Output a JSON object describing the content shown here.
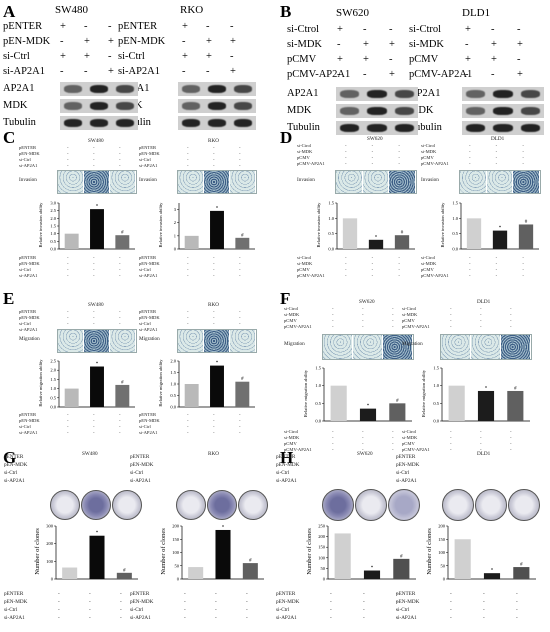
{
  "panels": {
    "A": {
      "letter": "A",
      "title1": "SW480",
      "title2": "RKO",
      "rows": [
        "pENTER",
        "pEN-MDK",
        "si-Ctrl",
        "si-AP2A1"
      ],
      "signs": [
        [
          "+",
          "-",
          "-"
        ],
        [
          "-",
          "+",
          "+"
        ],
        [
          "+",
          "+",
          "-"
        ],
        [
          "-",
          "-",
          "+"
        ]
      ],
      "blots": [
        "AP2A1",
        "MDK",
        "Tubulin"
      ]
    },
    "B": {
      "letter": "B",
      "title1": "SW620",
      "title2": "DLD1",
      "rows": [
        "si-Ctrol",
        "si-MDK",
        "pCMV",
        "pCMV-AP2A1"
      ],
      "signs": [
        [
          "+",
          "-",
          "-"
        ],
        [
          "-",
          "+",
          "+"
        ],
        [
          "+",
          "+",
          "-"
        ],
        [
          "-",
          "-",
          "+"
        ]
      ],
      "blots": [
        "AP2A1",
        "MDK",
        "Tubulin"
      ]
    },
    "C": {
      "letter": "C",
      "title1": "SW480",
      "title2": "RKO",
      "strip_label": "Invasion",
      "ylabel": "Relative invasion ability",
      "rows": [
        "pENTER",
        "pEN-MDK",
        "si-Ctrl",
        "si-AP2A1"
      ]
    },
    "D": {
      "letter": "D",
      "title1": "SW620",
      "title2": "DLD1",
      "strip_label": "Invasion",
      "ylabel": "Relative invasion ability",
      "rows": [
        "si-Ctrol",
        "si-MDK",
        "pCMV",
        "pCMV-AP2A1"
      ]
    },
    "E": {
      "letter": "E",
      "title1": "SW480",
      "title2": "RKO",
      "strip_label": "Migration",
      "ylabel": "Relative migration ability",
      "rows": [
        "pENTER",
        "pEN-MDK",
        "si-Ctrl",
        "si-AP2A1"
      ]
    },
    "F": {
      "letter": "F",
      "title1": "SW620",
      "title2": "DLD1",
      "strip_label": "Migration",
      "ylabel": "Relative migration ability",
      "rows": [
        "si-Ctrol",
        "si-MDK",
        "pCMV",
        "pCMV-AP2A1"
      ]
    },
    "G": {
      "letter": "G",
      "title1": "SW480",
      "title2": "RKO",
      "ylabel": "Number of clones",
      "rows": [
        "pENTER",
        "pEN-MDK",
        "si-Ctrl",
        "si-AP2A1"
      ]
    },
    "H": {
      "letter": "H",
      "title1": "SW620",
      "title2": "DLD1",
      "ylabel": "Number of clones",
      "rows": [
        "pENTER",
        "pEN-MDK",
        "si-Ctrl",
        "si-AP2A1"
      ]
    }
  },
  "colors": {
    "bar1": "#b9b9b9",
    "bar2": "#0a0a0a",
    "bar3": "#707070",
    "bar_light": "#d0d0d0",
    "bar_dark": "#1c1c1c",
    "bar_mid": "#606060"
  },
  "chart_data": [
    {
      "id": "C-SW480",
      "type": "bar",
      "categories": [
        "1",
        "2",
        "3"
      ],
      "values": [
        1.0,
        2.6,
        0.9
      ],
      "ylim": [
        0,
        3
      ],
      "yticks": [
        "0.0",
        "0.5",
        "1.0",
        "1.5",
        "2.0",
        "2.5",
        "3.0"
      ],
      "markers": [
        "",
        "*",
        "#"
      ]
    },
    {
      "id": "C-RKO",
      "type": "bar",
      "categories": [
        "1",
        "2",
        "3"
      ],
      "values": [
        1.0,
        2.9,
        0.85
      ],
      "ylim": [
        0,
        3.5
      ],
      "yticks": [
        "0",
        "1",
        "2",
        "3"
      ],
      "markers": [
        "",
        "*",
        "#"
      ]
    },
    {
      "id": "D-SW620",
      "type": "bar",
      "categories": [
        "1",
        "2",
        "3"
      ],
      "values": [
        1.0,
        0.3,
        0.45
      ],
      "ylim": [
        0,
        1.5
      ],
      "yticks": [
        "0.0",
        "0.5",
        "1.0",
        "1.5"
      ],
      "markers": [
        "",
        "*",
        "#"
      ]
    },
    {
      "id": "D-DLD1",
      "type": "bar",
      "categories": [
        "1",
        "2",
        "3"
      ],
      "values": [
        1.0,
        0.6,
        0.8
      ],
      "ylim": [
        0,
        1.5
      ],
      "yticks": [
        "0.0",
        "0.5",
        "1.0",
        "1.5"
      ],
      "markers": [
        "",
        "*",
        "#"
      ]
    },
    {
      "id": "E-SW480",
      "type": "bar",
      "categories": [
        "1",
        "2",
        "3"
      ],
      "values": [
        1.0,
        2.2,
        1.2
      ],
      "ylim": [
        0,
        2.5
      ],
      "yticks": [
        "0.0",
        "0.5",
        "1.0",
        "1.5",
        "2.0",
        "2.5"
      ],
      "markers": [
        "",
        "*",
        "#"
      ]
    },
    {
      "id": "E-RKO",
      "type": "bar",
      "categories": [
        "1",
        "2",
        "3"
      ],
      "values": [
        1.0,
        1.8,
        1.1
      ],
      "ylim": [
        0,
        2
      ],
      "yticks": [
        "0.0",
        "0.5",
        "1.0",
        "1.5",
        "2.0"
      ],
      "markers": [
        "",
        "*",
        "#"
      ]
    },
    {
      "id": "F-SW620",
      "type": "bar",
      "categories": [
        "1",
        "2",
        "3"
      ],
      "values": [
        1.0,
        0.35,
        0.5
      ],
      "ylim": [
        0,
        1.5
      ],
      "yticks": [
        "0.0",
        "0.5",
        "1.0",
        "1.5"
      ],
      "markers": [
        "",
        "*",
        "#"
      ]
    },
    {
      "id": "F-DLD1",
      "type": "bar",
      "categories": [
        "1",
        "2",
        "3"
      ],
      "values": [
        1.0,
        0.85,
        0.85
      ],
      "ylim": [
        0,
        1.5
      ],
      "yticks": [
        "0.0",
        "0.5",
        "1.0",
        "1.5"
      ],
      "markers": [
        "",
        "*",
        "#"
      ]
    },
    {
      "id": "G-SW480",
      "type": "bar",
      "categories": [
        "1",
        "2",
        "3"
      ],
      "values": [
        65,
        245,
        35
      ],
      "ylim": [
        0,
        300
      ],
      "yticks": [
        "0",
        "100",
        "200",
        "300"
      ],
      "markers": [
        "",
        "*",
        "#"
      ]
    },
    {
      "id": "G-RKO",
      "type": "bar",
      "categories": [
        "1",
        "2",
        "3"
      ],
      "values": [
        45,
        185,
        60
      ],
      "ylim": [
        0,
        200
      ],
      "yticks": [
        "0",
        "50",
        "100",
        "150",
        "200"
      ],
      "markers": [
        "",
        "*",
        "#"
      ]
    },
    {
      "id": "H-SW620",
      "type": "bar",
      "categories": [
        "1",
        "2",
        "3"
      ],
      "values": [
        215,
        40,
        95
      ],
      "ylim": [
        0,
        250
      ],
      "yticks": [
        "0",
        "50",
        "100",
        "150",
        "200",
        "250"
      ],
      "markers": [
        "",
        "*",
        "#"
      ]
    },
    {
      "id": "H-DLD1",
      "type": "bar",
      "categories": [
        "1",
        "2",
        "3"
      ],
      "values": [
        150,
        22,
        45
      ],
      "ylim": [
        0,
        200
      ],
      "yticks": [
        "0",
        "50",
        "100",
        "150",
        "200"
      ],
      "markers": [
        "",
        "*",
        "#"
      ]
    }
  ]
}
